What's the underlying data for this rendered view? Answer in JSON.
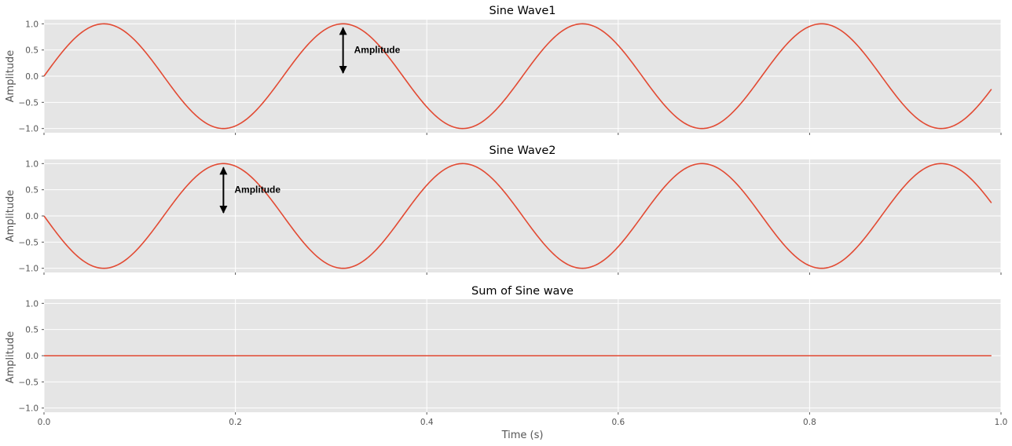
{
  "chart_data": [
    {
      "type": "line",
      "title": "Sine Wave1",
      "ylabel": "Amplitude",
      "xlabel": "",
      "xlim": [
        0,
        1
      ],
      "ylim": [
        -1.08,
        1.08
      ],
      "yticks": [
        "1.0",
        "0.5",
        "0.0",
        "−0.5",
        "−1.0"
      ],
      "ytick_values": [
        1.0,
        0.5,
        0.0,
        -0.5,
        -1.0
      ],
      "xticks": [
        0,
        0.2,
        0.4,
        0.6,
        0.8,
        1.0
      ],
      "xtick_labels_shown": false,
      "grid": true,
      "series": [
        {
          "function": "sin(2*pi*4*t)",
          "frequency": 4,
          "amplitude": 1,
          "phase": 0,
          "x_start": 0,
          "x_end": 0.99,
          "color": "#e24a33"
        }
      ],
      "annotation": {
        "text": "Amplitude",
        "x": 0.3125,
        "y_from": 0,
        "y_to": 1
      }
    },
    {
      "type": "line",
      "title": "Sine Wave2",
      "ylabel": "Amplitude",
      "xlabel": "",
      "xlim": [
        0,
        1
      ],
      "ylim": [
        -1.08,
        1.08
      ],
      "yticks": [
        "1.0",
        "0.5",
        "0.0",
        "−0.5",
        "−1.0"
      ],
      "ytick_values": [
        1.0,
        0.5,
        0.0,
        -0.5,
        -1.0
      ],
      "xticks": [
        0,
        0.2,
        0.4,
        0.6,
        0.8,
        1.0
      ],
      "xtick_labels_shown": false,
      "grid": true,
      "series": [
        {
          "function": "-sin(2*pi*4*t)",
          "frequency": 4,
          "amplitude": -1,
          "phase": 0,
          "x_start": 0,
          "x_end": 0.99,
          "color": "#e24a33"
        }
      ],
      "annotation": {
        "text": "Amplitude",
        "x": 0.1875,
        "y_from": 0,
        "y_to": 1
      }
    },
    {
      "type": "line",
      "title": "Sum of Sine wave",
      "ylabel": "Amplitude",
      "xlabel": "Time (s)",
      "xlim": [
        0,
        1
      ],
      "ylim": [
        -1.08,
        1.08
      ],
      "yticks": [
        "1.0",
        "0.5",
        "0.0",
        "−0.5",
        "−1.0"
      ],
      "ytick_values": [
        1.0,
        0.5,
        0.0,
        -0.5,
        -1.0
      ],
      "xticks": [
        0,
        0.2,
        0.4,
        0.6,
        0.8,
        1.0
      ],
      "xtick_labels": [
        "0.0",
        "0.2",
        "0.4",
        "0.6",
        "0.8",
        "1.0"
      ],
      "xtick_labels_shown": true,
      "grid": true,
      "series": [
        {
          "function": "0",
          "frequency": 0,
          "amplitude": 0,
          "phase": 0,
          "x_start": 0,
          "x_end": 0.99,
          "color": "#e24a33"
        }
      ]
    }
  ],
  "style": {
    "axes_facecolor": "#e5e5e5",
    "grid_color": "#ffffff",
    "line_color": "#e24a33",
    "tick_color": "#555555"
  }
}
